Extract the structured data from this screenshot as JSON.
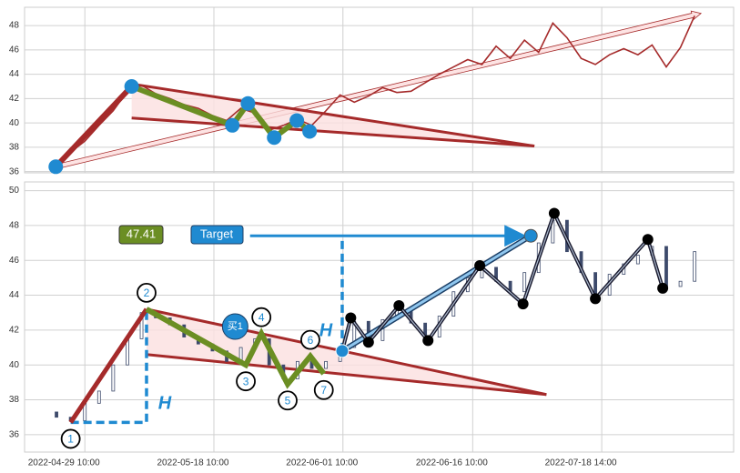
{
  "chart_data": [
    {
      "type": "line",
      "color": "#a52a2a",
      "grid": true,
      "xlim": [
        0,
        100
      ],
      "ylim": [
        35.9,
        49.5
      ],
      "yticks": [
        36,
        38,
        40,
        42,
        44,
        46,
        48
      ],
      "x": [
        4.5,
        6.5,
        8.5,
        10.5,
        12.5,
        14.5,
        16.5,
        18.5,
        20.5,
        22.5,
        24.5,
        26.5,
        28.5,
        30.5,
        32.5,
        34.5,
        36.5,
        38.5,
        40.5,
        42.5,
        44.5,
        46.5,
        48.5,
        50.5,
        52.5,
        54.5,
        56.5,
        58.5,
        60.5,
        62.5,
        64.5,
        66.5,
        68.5,
        70.5,
        72.5,
        74.5,
        76.5,
        78.5,
        80.5,
        82.5,
        84.5,
        86.5,
        88.5,
        90.5,
        92.5,
        94.5
      ],
      "values": [
        36.6,
        37.6,
        38.5,
        39.8,
        41,
        42.6,
        43.1,
        42.4,
        42,
        41.5,
        41.2,
        40.6,
        40.2,
        41.2,
        40.8,
        39.4,
        39.8,
        40.3,
        39.8,
        41,
        42.3,
        41.7,
        42.2,
        42.9,
        42.5,
        42.6,
        43.3,
        44,
        44.6,
        45.2,
        44.8,
        46.3,
        45.3,
        46.8,
        45.8,
        48.2,
        47,
        45.3,
        44.8,
        45.6,
        46.1,
        45.6,
        46.4,
        44.6,
        46.2,
        48.8
      ],
      "pattern_points": {
        "x": [
          4.4,
          15.1,
          29.3,
          31.5,
          35.2,
          38.4,
          40.2
        ],
        "y": [
          36.4,
          43.0,
          39.8,
          41.6,
          38.8,
          40.2,
          39.3
        ]
      },
      "triangle_upper": {
        "x": [
          15.1,
          71.9
        ],
        "y": [
          43.2,
          38.1
        ]
      },
      "triangle_lower": {
        "x": [
          15.1,
          71.9
        ],
        "y": [
          40.4,
          38.1
        ]
      },
      "trend_arrow": {
        "x": [
          4.4,
          95.4
        ],
        "y": [
          36.4,
          49.0
        ]
      }
    },
    {
      "type": "candlestick",
      "grid": true,
      "xlim": [
        0,
        100
      ],
      "ylim": [
        35,
        50.5
      ],
      "yticks": [
        36,
        38,
        40,
        42,
        44,
        46,
        48,
        50
      ],
      "xticks": [
        {
          "value": 8.5,
          "label": "2022-04-29 10:00"
        },
        {
          "value": 26.7,
          "label": "2022-05-18 10:00"
        },
        {
          "value": 44.9,
          "label": "2022-06-01 10:00"
        },
        {
          "value": 63.2,
          "label": "2022-06-16 10:00"
        },
        {
          "value": 81.4,
          "label": "2022-07-18 14:00"
        }
      ],
      "x": [
        4.5,
        6.5,
        8.5,
        10.5,
        12.5,
        14.5,
        16.5,
        18.5,
        20.5,
        22.5,
        24.5,
        26.5,
        28.5,
        30.5,
        32.5,
        34.5,
        36.5,
        38.5,
        40.5,
        42.5,
        44.5,
        46.5,
        48.5,
        50.5,
        52.5,
        54.5,
        56.5,
        58.5,
        60.5,
        62.5,
        64.5,
        66.5,
        68.5,
        70.5,
        72.5,
        74.5,
        76.5,
        78.5,
        80.5,
        82.5,
        84.5,
        86.5,
        88.5,
        90.5,
        92.5,
        94.5
      ],
      "open": [
        37.3,
        37,
        36.8,
        37.8,
        38.5,
        40,
        41.5,
        43,
        42.7,
        42.3,
        41.6,
        41.2,
        40.8,
        40.2,
        41,
        41.5,
        40,
        39.2,
        40.2,
        39.8,
        40.2,
        41,
        42.5,
        41.4,
        42.6,
        43.2,
        42.4,
        41.6,
        42.8,
        44.2,
        45,
        45.6,
        44.8,
        44.2,
        45.3,
        47,
        48.3,
        46.5,
        45.3,
        44,
        45.2,
        45.8,
        46.3,
        46.8,
        44.5,
        44.8
      ],
      "close": [
        37,
        36.8,
        37.8,
        38.5,
        40,
        41.5,
        43,
        42.7,
        42.3,
        41.6,
        41.2,
        40.8,
        40.2,
        41,
        41.5,
        40,
        39.2,
        40.2,
        39.8,
        40.2,
        41,
        42.5,
        41.4,
        42.6,
        43.2,
        42.4,
        41.6,
        42.8,
        44.2,
        45,
        45.6,
        44.8,
        44.2,
        45.3,
        47,
        48.3,
        46.5,
        45.3,
        44,
        45.2,
        45.8,
        46.3,
        46.8,
        44.5,
        44.8,
        46.5
      ],
      "wave_points": {
        "labels": [
          "1",
          "2",
          "3",
          "4",
          "5",
          "6",
          "7"
        ],
        "x": [
          6.5,
          17.2,
          31.2,
          33.4,
          37.1,
          40.3,
          42.2
        ],
        "y": [
          36.7,
          43.2,
          40.0,
          41.8,
          38.9,
          40.5,
          39.5
        ]
      },
      "triangle_upper": {
        "x": [
          17.2,
          73.6
        ],
        "y": [
          43.2,
          38.3
        ]
      },
      "triangle_lower": {
        "x": [
          17.2,
          73.6
        ],
        "y": [
          40.6,
          38.3
        ]
      },
      "height_1": {
        "x": [
          6.5,
          17.2,
          17.2
        ],
        "y": [
          36.7,
          36.7,
          43.2
        ]
      },
      "height_label": "H",
      "breakout": {
        "x": 44.8,
        "y": 40.8
      },
      "buy": {
        "label": "买1",
        "x": 29.7,
        "y": 42.2
      },
      "target": {
        "label": "Target",
        "value": 47.41,
        "x": [
          31.8,
          71.4
        ]
      },
      "zigzag": {
        "x": [
          44.8,
          46,
          48.5,
          52.8,
          56.9,
          64.2,
          70.3,
          74.7,
          80.5,
          87.9,
          90
        ],
        "y": [
          40.8,
          42.7,
          41.3,
          43.4,
          41.4,
          45.7,
          43.5,
          48.7,
          43.8,
          47.2,
          44.4
        ]
      }
    }
  ]
}
